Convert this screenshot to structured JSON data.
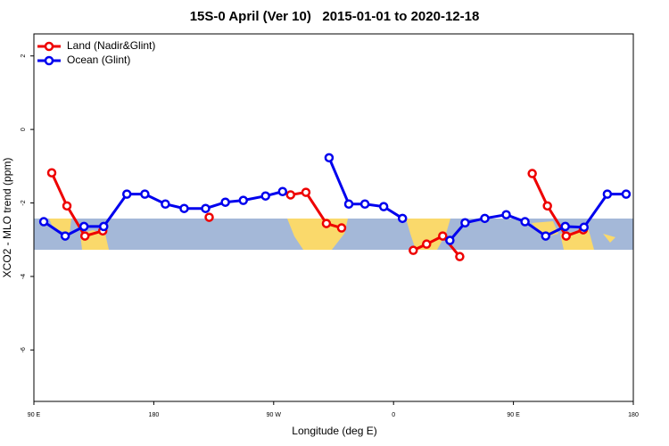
{
  "chart_data": {
    "type": "line",
    "title": "15S-0 April (Ver 10)   2015-01-01 to 2020-12-18",
    "xlabel": "Longitude (deg E)",
    "ylabel": "XCO2 - MLO trend (ppm)",
    "xlim": [
      90,
      540
    ],
    "xticks": [
      {
        "value": 90,
        "label": "90 E"
      },
      {
        "value": 180,
        "label": "180"
      },
      {
        "value": 270,
        "label": "90 W"
      },
      {
        "value": 360,
        "label": "0"
      },
      {
        "value": 450,
        "label": "90 E"
      },
      {
        "value": 540,
        "label": "180"
      }
    ],
    "ylim": [
      -7.4,
      2.6
    ],
    "yticks": [
      -6,
      -4,
      -2,
      0,
      2
    ],
    "legend": "top-left",
    "series": [
      {
        "name": "Land (Nadir&Glint)",
        "color": "#ee0000",
        "x": [
          103.4,
          114.8,
          128.3,
          141.7,
          null,
          221.6,
          null,
          282.7,
          294.2,
          309.6,
          321.0,
          null,
          374.8,
          384.8,
          396.9,
          409.7,
          null,
          464.1,
          475.5,
          489.6,
          502.4
        ],
        "values": [
          -1.18,
          -2.08,
          -2.9,
          -2.76,
          null,
          -2.39,
          null,
          -1.78,
          -1.71,
          -2.56,
          -2.68,
          null,
          -3.29,
          -3.12,
          -2.9,
          -3.46,
          null,
          -1.2,
          -2.08,
          -2.9,
          -2.73
        ]
      },
      {
        "name": "Ocean (Glint)",
        "color": "#0000ee",
        "x": [
          97.4,
          113.5,
          127.6,
          142.4,
          159.8,
          173.3,
          188.7,
          202.8,
          218.9,
          233.7,
          247.2,
          263.9,
          276.7,
          null,
          311.6,
          326.4,
          338.5,
          352.6,
          366.7,
          null,
          402.3,
          413.7,
          428.5,
          444.6,
          458.7,
          474.2,
          488.9,
          503.0,
          520.5,
          534.6
        ],
        "values": [
          -2.51,
          -2.9,
          -2.64,
          -2.64,
          -1.76,
          -1.76,
          -2.03,
          -2.15,
          -2.15,
          -1.98,
          -1.93,
          -1.81,
          -1.69,
          null,
          -0.77,
          -2.03,
          -2.03,
          -2.1,
          -2.42,
          null,
          -3.02,
          -2.54,
          -2.42,
          -2.32,
          -2.51,
          -2.9,
          -2.64,
          -2.66,
          -1.76,
          -1.76
        ]
      }
    ]
  }
}
